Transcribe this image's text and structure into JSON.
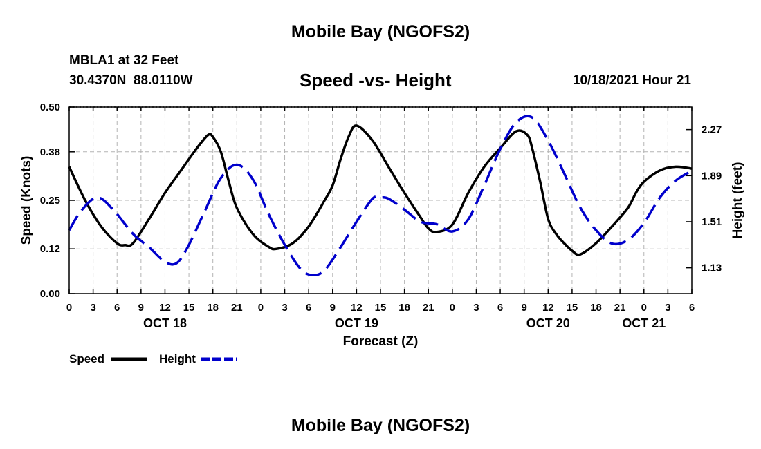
{
  "page": {
    "top_title": "Mobile Bay (NGOFS2)",
    "bottom_title": "Mobile Bay (NGOFS2)",
    "station": "MBLA1 at 32 Feet",
    "coords": "30.4370N  88.0110W",
    "subtitle": "Speed -vs- Height",
    "datetime": "10/18/2021 Hour 21"
  },
  "colors": {
    "speed": "#000000",
    "height": "#0000cc",
    "grid": "#b4b4b4"
  },
  "chart_data": {
    "type": "line",
    "xlabel": "Forecast (Z)",
    "ylabel": "Speed (Knots)",
    "y2label": "Height (feet)",
    "xlim": [
      0,
      78
    ],
    "ylim": [
      0,
      0.5
    ],
    "y2lim": [
      0.917,
      2.456
    ],
    "x_tick_positions": [
      0,
      3,
      6,
      9,
      12,
      15,
      18,
      21,
      24,
      27,
      30,
      33,
      36,
      39,
      42,
      45,
      48,
      51,
      54,
      57,
      60,
      63,
      66,
      69,
      72,
      75,
      78
    ],
    "x_tick_labels": [
      "0",
      "3",
      "6",
      "9",
      "12",
      "15",
      "18",
      "21",
      "0",
      "3",
      "6",
      "9",
      "12",
      "15",
      "18",
      "21",
      "0",
      "3",
      "6",
      "9",
      "12",
      "15",
      "18",
      "21",
      "0",
      "3",
      "6"
    ],
    "date_labels": [
      {
        "text": "OCT 18",
        "x": 12
      },
      {
        "text": "OCT 19",
        "x": 36
      },
      {
        "text": "OCT 20",
        "x": 60
      },
      {
        "text": "OCT 21",
        "x": 72
      }
    ],
    "y_ticks": [
      0.0,
      0.12,
      0.25,
      0.38,
      0.5
    ],
    "y_tick_labels": [
      "0.00",
      "0.12",
      "0.25",
      "0.38",
      "0.50"
    ],
    "y2_ticks": [
      1.13,
      1.51,
      1.89,
      2.27
    ],
    "y2_tick_labels": [
      "1.13",
      "1.51",
      "1.89",
      "2.27"
    ],
    "legend": [
      "Speed",
      "Height"
    ],
    "legend_position": "bottom-left",
    "series": [
      {
        "name": "Speed",
        "axis": "left",
        "style": "solid",
        "x": [
          0,
          2,
          4,
          6,
          7,
          8,
          10,
          12,
          14,
          16,
          17.4,
          18,
          19,
          20,
          21,
          23,
          25,
          26,
          28,
          30,
          32,
          33,
          34,
          35,
          36,
          38,
          40,
          42,
          44,
          45,
          46,
          48,
          50,
          52,
          54,
          56,
          57.4,
          58,
          59,
          60,
          61,
          62,
          63,
          64,
          66,
          68,
          70,
          71,
          72,
          74,
          76,
          78
        ],
        "y": [
          0.34,
          0.25,
          0.18,
          0.135,
          0.13,
          0.135,
          0.2,
          0.27,
          0.33,
          0.39,
          0.425,
          0.42,
          0.38,
          0.3,
          0.23,
          0.16,
          0.125,
          0.12,
          0.135,
          0.18,
          0.25,
          0.29,
          0.36,
          0.42,
          0.45,
          0.41,
          0.34,
          0.27,
          0.205,
          0.175,
          0.165,
          0.185,
          0.27,
          0.34,
          0.39,
          0.435,
          0.425,
          0.39,
          0.3,
          0.2,
          0.16,
          0.135,
          0.115,
          0.105,
          0.135,
          0.18,
          0.23,
          0.27,
          0.3,
          0.33,
          0.34,
          0.335
        ]
      },
      {
        "name": "Height",
        "axis": "right",
        "style": "dashed",
        "x": [
          0,
          1.5,
          3.5,
          5.5,
          8,
          10,
          12,
          13.5,
          15,
          17,
          19,
          21,
          23,
          25,
          27,
          29,
          30.5,
          32,
          34,
          36,
          38,
          39,
          40,
          42,
          44,
          46,
          48,
          50,
          52,
          54,
          56,
          58,
          60,
          62,
          64,
          66,
          68,
          70,
          72,
          74,
          76,
          78
        ],
        "y": [
          1.44,
          1.6,
          1.71,
          1.61,
          1.41,
          1.3,
          1.18,
          1.17,
          1.32,
          1.6,
          1.87,
          1.98,
          1.86,
          1.57,
          1.32,
          1.12,
          1.07,
          1.11,
          1.3,
          1.51,
          1.7,
          1.71,
          1.7,
          1.61,
          1.51,
          1.49,
          1.43,
          1.53,
          1.81,
          2.11,
          2.33,
          2.37,
          2.18,
          1.91,
          1.63,
          1.44,
          1.33,
          1.36,
          1.5,
          1.71,
          1.85,
          1.93
        ]
      }
    ]
  }
}
